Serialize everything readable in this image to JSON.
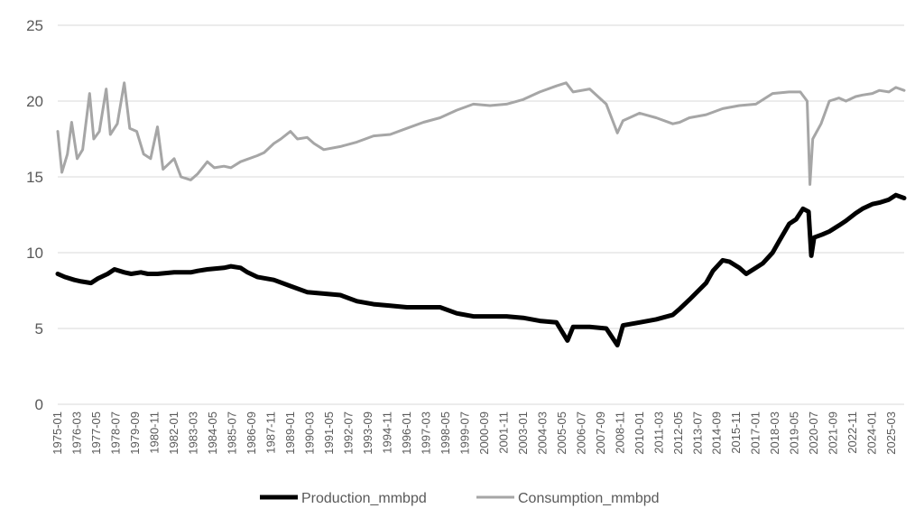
{
  "chart_data": {
    "type": "line",
    "title": "",
    "xlabel": "",
    "ylabel": "",
    "ylim": [
      0,
      25
    ],
    "yticks": [
      0,
      5,
      10,
      15,
      20,
      25
    ],
    "x_start": "1975-01",
    "x_end": "2025-12",
    "x_tick_labels": [
      "1975-01",
      "1976-03",
      "1977-05",
      "1978-07",
      "1979-09",
      "1980-11",
      "1982-01",
      "1983-03",
      "1984-05",
      "1985-07",
      "1986-09",
      "1987-11",
      "1989-01",
      "1990-03",
      "1991-05",
      "1992-07",
      "1993-09",
      "1994-11",
      "1996-01",
      "1997-03",
      "1998-05",
      "1999-07",
      "2000-09",
      "2001-11",
      "2003-01",
      "2004-03",
      "2005-05",
      "2006-07",
      "2007-09",
      "2008-11",
      "2010-01",
      "2011-03",
      "2012-05",
      "2013-07",
      "2014-09",
      "2015-11",
      "2017-01",
      "2018-03",
      "2019-05",
      "2020-07",
      "2021-09",
      "2022-11",
      "2024-01",
      "2025-03"
    ],
    "grid": true,
    "legend_position": "bottom",
    "series": [
      {
        "name": "Production_mmbpd",
        "color": "#000000",
        "points": [
          [
            "1975-01",
            8.6
          ],
          [
            "1975-06",
            8.4
          ],
          [
            "1976-01",
            8.2
          ],
          [
            "1976-06",
            8.1
          ],
          [
            "1977-01",
            8.0
          ],
          [
            "1977-06",
            8.3
          ],
          [
            "1978-01",
            8.6
          ],
          [
            "1978-06",
            8.9
          ],
          [
            "1979-01",
            8.7
          ],
          [
            "1979-06",
            8.6
          ],
          [
            "1980-01",
            8.7
          ],
          [
            "1980-06",
            8.6
          ],
          [
            "1981-01",
            8.6
          ],
          [
            "1982-01",
            8.7
          ],
          [
            "1983-01",
            8.7
          ],
          [
            "1983-06",
            8.8
          ],
          [
            "1984-01",
            8.9
          ],
          [
            "1985-01",
            9.0
          ],
          [
            "1985-06",
            9.1
          ],
          [
            "1986-01",
            9.0
          ],
          [
            "1986-06",
            8.7
          ],
          [
            "1987-01",
            8.4
          ],
          [
            "1988-01",
            8.2
          ],
          [
            "1989-01",
            7.8
          ],
          [
            "1990-01",
            7.4
          ],
          [
            "1991-01",
            7.3
          ],
          [
            "1992-01",
            7.2
          ],
          [
            "1993-01",
            6.8
          ],
          [
            "1994-01",
            6.6
          ],
          [
            "1995-01",
            6.5
          ],
          [
            "1996-01",
            6.4
          ],
          [
            "1997-01",
            6.4
          ],
          [
            "1998-01",
            6.4
          ],
          [
            "1999-01",
            6.0
          ],
          [
            "2000-01",
            5.8
          ],
          [
            "2001-01",
            5.8
          ],
          [
            "2002-01",
            5.8
          ],
          [
            "2003-01",
            5.7
          ],
          [
            "2004-01",
            5.5
          ],
          [
            "2005-01",
            5.4
          ],
          [
            "2005-09",
            4.2
          ],
          [
            "2006-01",
            5.1
          ],
          [
            "2007-01",
            5.1
          ],
          [
            "2008-01",
            5.0
          ],
          [
            "2008-09",
            3.9
          ],
          [
            "2009-01",
            5.2
          ],
          [
            "2010-01",
            5.4
          ],
          [
            "2011-01",
            5.6
          ],
          [
            "2012-01",
            5.9
          ],
          [
            "2012-06",
            6.3
          ],
          [
            "2013-01",
            6.9
          ],
          [
            "2014-01",
            8.0
          ],
          [
            "2014-06",
            8.8
          ],
          [
            "2015-01",
            9.5
          ],
          [
            "2015-06",
            9.4
          ],
          [
            "2016-01",
            9.0
          ],
          [
            "2016-06",
            8.6
          ],
          [
            "2017-01",
            9.0
          ],
          [
            "2017-06",
            9.3
          ],
          [
            "2018-01",
            10.0
          ],
          [
            "2018-06",
            10.8
          ],
          [
            "2019-01",
            11.9
          ],
          [
            "2019-06",
            12.2
          ],
          [
            "2019-11",
            12.9
          ],
          [
            "2020-03",
            12.7
          ],
          [
            "2020-05",
            9.8
          ],
          [
            "2020-07",
            11.0
          ],
          [
            "2021-01",
            11.2
          ],
          [
            "2021-06",
            11.4
          ],
          [
            "2022-01",
            11.8
          ],
          [
            "2022-06",
            12.1
          ],
          [
            "2023-01",
            12.6
          ],
          [
            "2023-06",
            12.9
          ],
          [
            "2024-01",
            13.2
          ],
          [
            "2024-06",
            13.3
          ],
          [
            "2025-01",
            13.5
          ],
          [
            "2025-06",
            13.8
          ],
          [
            "2025-12",
            13.6
          ]
        ]
      },
      {
        "name": "Consumption_mmbpd",
        "color": "#a6a6a6",
        "points": [
          [
            "1975-01",
            18.0
          ],
          [
            "1975-04",
            15.3
          ],
          [
            "1975-08",
            16.5
          ],
          [
            "1975-11",
            18.6
          ],
          [
            "1976-03",
            16.2
          ],
          [
            "1976-07",
            16.8
          ],
          [
            "1976-12",
            20.5
          ],
          [
            "1977-03",
            17.5
          ],
          [
            "1977-07",
            18.0
          ],
          [
            "1977-12",
            20.8
          ],
          [
            "1978-03",
            17.8
          ],
          [
            "1978-08",
            18.5
          ],
          [
            "1979-01",
            21.2
          ],
          [
            "1979-05",
            18.2
          ],
          [
            "1979-10",
            18.0
          ],
          [
            "1980-03",
            16.5
          ],
          [
            "1980-08",
            16.2
          ],
          [
            "1981-01",
            18.3
          ],
          [
            "1981-05",
            15.5
          ],
          [
            "1982-01",
            16.2
          ],
          [
            "1982-06",
            15.0
          ],
          [
            "1983-01",
            14.8
          ],
          [
            "1983-06",
            15.2
          ],
          [
            "1984-01",
            16.0
          ],
          [
            "1984-06",
            15.6
          ],
          [
            "1985-01",
            15.7
          ],
          [
            "1985-06",
            15.6
          ],
          [
            "1986-01",
            16.0
          ],
          [
            "1987-01",
            16.4
          ],
          [
            "1987-06",
            16.6
          ],
          [
            "1988-01",
            17.2
          ],
          [
            "1988-06",
            17.5
          ],
          [
            "1989-01",
            18.0
          ],
          [
            "1989-06",
            17.5
          ],
          [
            "1990-01",
            17.6
          ],
          [
            "1990-06",
            17.2
          ],
          [
            "1991-01",
            16.8
          ],
          [
            "1992-01",
            17.0
          ],
          [
            "1993-01",
            17.3
          ],
          [
            "1994-01",
            17.7
          ],
          [
            "1995-01",
            17.8
          ],
          [
            "1996-01",
            18.2
          ],
          [
            "1997-01",
            18.6
          ],
          [
            "1998-01",
            18.9
          ],
          [
            "1999-01",
            19.4
          ],
          [
            "2000-01",
            19.8
          ],
          [
            "2001-01",
            19.7
          ],
          [
            "2002-01",
            19.8
          ],
          [
            "2003-01",
            20.1
          ],
          [
            "2004-01",
            20.6
          ],
          [
            "2005-01",
            21.0
          ],
          [
            "2005-08",
            21.2
          ],
          [
            "2006-01",
            20.6
          ],
          [
            "2007-01",
            20.8
          ],
          [
            "2008-01",
            19.8
          ],
          [
            "2008-09",
            17.9
          ],
          [
            "2009-01",
            18.7
          ],
          [
            "2010-01",
            19.2
          ],
          [
            "2011-01",
            18.9
          ],
          [
            "2012-01",
            18.5
          ],
          [
            "2012-06",
            18.6
          ],
          [
            "2013-01",
            18.9
          ],
          [
            "2014-01",
            19.1
          ],
          [
            "2015-01",
            19.5
          ],
          [
            "2016-01",
            19.7
          ],
          [
            "2017-01",
            19.8
          ],
          [
            "2018-01",
            20.5
          ],
          [
            "2019-01",
            20.6
          ],
          [
            "2019-09",
            20.6
          ],
          [
            "2020-02",
            20.0
          ],
          [
            "2020-04",
            14.5
          ],
          [
            "2020-06",
            17.5
          ],
          [
            "2020-12",
            18.5
          ],
          [
            "2021-06",
            20.0
          ],
          [
            "2022-01",
            20.2
          ],
          [
            "2022-06",
            20.0
          ],
          [
            "2023-01",
            20.3
          ],
          [
            "2023-06",
            20.4
          ],
          [
            "2024-01",
            20.5
          ],
          [
            "2024-06",
            20.7
          ],
          [
            "2025-01",
            20.6
          ],
          [
            "2025-06",
            20.9
          ],
          [
            "2025-12",
            20.7
          ]
        ]
      }
    ]
  }
}
